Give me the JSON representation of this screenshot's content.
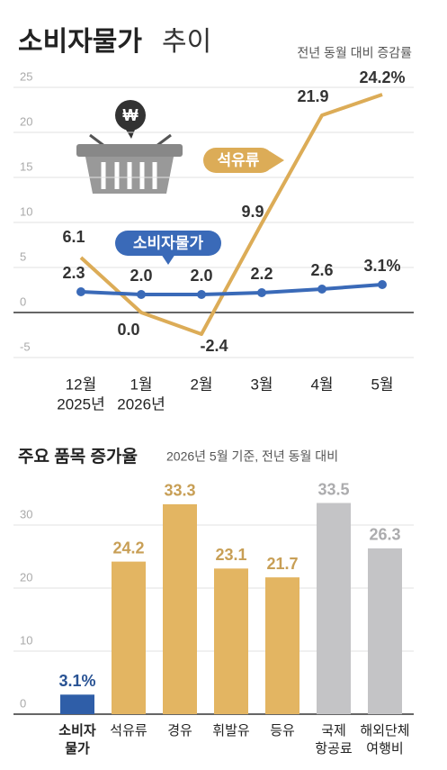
{
  "chart_data": [
    {
      "type": "line",
      "title": "소비자물가",
      "title_suffix": "추이",
      "subtitle": "전년 동월 대비 증감률",
      "categories": [
        [
          "12월",
          "2025년"
        ],
        [
          "1월",
          "2026년"
        ],
        [
          "2월"
        ],
        [
          "3월"
        ],
        [
          "4월"
        ],
        [
          "5월"
        ]
      ],
      "series": [
        {
          "name": "석유류",
          "color": "#dcac57",
          "values": [
            6.1,
            0.0,
            -2.4,
            9.9,
            21.9,
            24.2
          ],
          "value_labels": [
            "6.1",
            "0.0",
            "-2.4",
            "9.9",
            "21.9",
            "24.2%"
          ]
        },
        {
          "name": "소비자물가",
          "color": "#3a6ab8",
          "values": [
            2.3,
            2.0,
            2.0,
            2.2,
            2.6,
            3.1
          ],
          "value_labels": [
            "2.3",
            "2.0",
            "2.0",
            "2.2",
            "2.6",
            "3.1%"
          ]
        }
      ],
      "ylim": [
        -5,
        25
      ],
      "yticks": [
        25,
        20,
        15,
        10,
        5,
        0,
        -5
      ],
      "grid": true
    },
    {
      "type": "bar",
      "title": "주요 품목 증가율",
      "subtitle": "2026년 5월 기준, 전년 동월 대비",
      "categories": [
        [
          "소비자",
          "물가"
        ],
        [
          "석유류"
        ],
        [
          "경유"
        ],
        [
          "휘발유"
        ],
        [
          "등유"
        ],
        [
          "국제",
          "항공료"
        ],
        [
          "해외단체",
          "여행비"
        ]
      ],
      "values": [
        3.1,
        24.2,
        33.3,
        23.1,
        21.7,
        33.5,
        26.3
      ],
      "value_labels": [
        "3.1%",
        "24.2",
        "33.3",
        "23.1",
        "21.7",
        "33.5",
        "26.3"
      ],
      "colors": [
        "#2f5ea8",
        "#e3b562",
        "#e3b562",
        "#e3b562",
        "#e3b562",
        "#c4c4c6",
        "#c4c4c6"
      ],
      "ylim": [
        0,
        35
      ],
      "yticks": [
        30,
        20,
        10,
        0
      ],
      "grid": true
    }
  ]
}
